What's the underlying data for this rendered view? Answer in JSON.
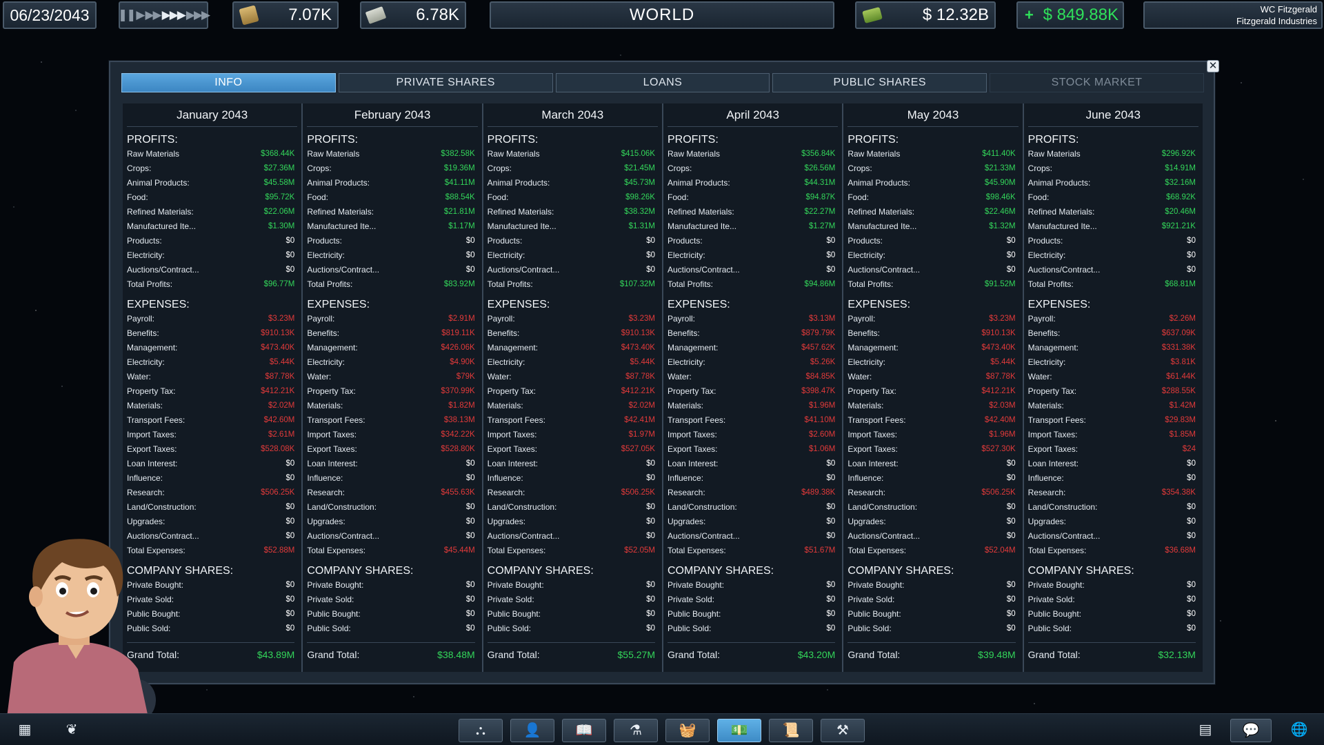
{
  "topbar": {
    "date": "06/23/2043",
    "speed_controls": [
      "pause-icon",
      "play-icon",
      "fast-icon",
      "faster-icon",
      "fastest-icon"
    ],
    "resource_scroll_value": "7.07K",
    "resource_bills_value": "6.78K",
    "view_title": "WORLD",
    "cash": "$ 12.32B",
    "income_sign": "+",
    "income": "$ 849.88K",
    "player_name": "WC Fitzgerald",
    "company_name": "Fitzgerald Industries"
  },
  "tabs": [
    {
      "label": "INFO",
      "state": "active"
    },
    {
      "label": "PRIVATE SHARES",
      "state": "normal"
    },
    {
      "label": "LOANS",
      "state": "normal"
    },
    {
      "label": "PUBLIC SHARES",
      "state": "normal"
    },
    {
      "label": "STOCK MARKET",
      "state": "disabled"
    }
  ],
  "section_titles": {
    "profits": "PROFITS:",
    "expenses": "EXPENSES:",
    "shares": "COMPANY SHARES:",
    "grand_total": "Grand Total:"
  },
  "profit_labels": [
    "Raw Materials",
    "Crops:",
    "Animal Products:",
    "Food:",
    "Refined Materials:",
    "Manufactured Ite...",
    "Products:",
    "Electricity:",
    "Auctions/Contract...",
    "Total Profits:"
  ],
  "expense_labels": [
    "Payroll:",
    "Benefits:",
    "Management:",
    "Electricity:",
    "Water:",
    "Property Tax:",
    "Materials:",
    "Transport Fees:",
    "Import Taxes:",
    "Export Taxes:",
    "Loan Interest:",
    "Influence:",
    "Research:",
    "Land/Construction:",
    "Upgrades:",
    "Auctions/Contract...",
    "Total Expenses:"
  ],
  "share_labels": [
    "Private Bought:",
    "Private Sold:",
    "Public Bought:",
    "Public Sold:"
  ],
  "months": [
    {
      "title": "January 2043",
      "profits": [
        "$368.44K",
        "$27.36M",
        "$45.58M",
        "$95.72K",
        "$22.06M",
        "$1.30M",
        "$0",
        "$0",
        "$0",
        "$96.77M"
      ],
      "expenses": [
        "$3.23M",
        "$910.13K",
        "$473.40K",
        "$5.44K",
        "$87.78K",
        "$412.21K",
        "$2.02M",
        "$42.60M",
        "$2.61M",
        "$528.08K",
        "$0",
        "$0",
        "$506.25K",
        "$0",
        "$0",
        "$0",
        "$52.88M"
      ],
      "shares": [
        "$0",
        "$0",
        "$0",
        "$0"
      ],
      "grand_total": "$43.89M"
    },
    {
      "title": "February 2043",
      "profits": [
        "$382.58K",
        "$19.36M",
        "$41.11M",
        "$88.54K",
        "$21.81M",
        "$1.17M",
        "$0",
        "$0",
        "$0",
        "$83.92M"
      ],
      "expenses": [
        "$2.91M",
        "$819.11K",
        "$426.06K",
        "$4.90K",
        "$79K",
        "$370.99K",
        "$1.82M",
        "$38.13M",
        "$342.22K",
        "$528.80K",
        "$0",
        "$0",
        "$455.63K",
        "$0",
        "$0",
        "$0",
        "$45.44M"
      ],
      "shares": [
        "$0",
        "$0",
        "$0",
        "$0"
      ],
      "grand_total": "$38.48M"
    },
    {
      "title": "March 2043",
      "profits": [
        "$415.06K",
        "$21.45M",
        "$45.73M",
        "$98.26K",
        "$38.32M",
        "$1.31M",
        "$0",
        "$0",
        "$0",
        "$107.32M"
      ],
      "expenses": [
        "$3.23M",
        "$910.13K",
        "$473.40K",
        "$5.44K",
        "$87.78K",
        "$412.21K",
        "$2.02M",
        "$42.41M",
        "$1.97M",
        "$527.05K",
        "$0",
        "$0",
        "$506.25K",
        "$0",
        "$0",
        "$0",
        "$52.05M"
      ],
      "shares": [
        "$0",
        "$0",
        "$0",
        "$0"
      ],
      "grand_total": "$55.27M"
    },
    {
      "title": "April 2043",
      "profits": [
        "$356.84K",
        "$26.56M",
        "$44.31M",
        "$94.87K",
        "$22.27M",
        "$1.27M",
        "$0",
        "$0",
        "$0",
        "$94.86M"
      ],
      "expenses": [
        "$3.13M",
        "$879.79K",
        "$457.62K",
        "$5.26K",
        "$84.85K",
        "$398.47K",
        "$1.96M",
        "$41.10M",
        "$2.60M",
        "$1.06M",
        "$0",
        "$0",
        "$489.38K",
        "$0",
        "$0",
        "$0",
        "$51.67M"
      ],
      "shares": [
        "$0",
        "$0",
        "$0",
        "$0"
      ],
      "grand_total": "$43.20M"
    },
    {
      "title": "May 2043",
      "profits": [
        "$411.40K",
        "$21.33M",
        "$45.90M",
        "$98.46K",
        "$22.46M",
        "$1.32M",
        "$0",
        "$0",
        "$0",
        "$91.52M"
      ],
      "expenses": [
        "$3.23M",
        "$910.13K",
        "$473.40K",
        "$5.44K",
        "$87.78K",
        "$412.21K",
        "$2.03M",
        "$42.40M",
        "$1.96M",
        "$527.30K",
        "$0",
        "$0",
        "$506.25K",
        "$0",
        "$0",
        "$0",
        "$52.04M"
      ],
      "shares": [
        "$0",
        "$0",
        "$0",
        "$0"
      ],
      "grand_total": "$39.48M"
    },
    {
      "title": "June 2043",
      "profits": [
        "$296.92K",
        "$14.91M",
        "$32.16M",
        "$68.92K",
        "$20.46M",
        "$921.21K",
        "$0",
        "$0",
        "$0",
        "$68.81M"
      ],
      "expenses": [
        "$2.26M",
        "$637.09K",
        "$331.38K",
        "$3.81K",
        "$61.44K",
        "$288.55K",
        "$1.42M",
        "$29.83M",
        "$1.85M",
        "$24",
        "$0",
        "$0",
        "$354.38K",
        "$0",
        "$0",
        "$0",
        "$36.68M"
      ],
      "shares": [
        "$0",
        "$0",
        "$0",
        "$0"
      ],
      "grand_total": "$32.13M"
    }
  ],
  "bottombar": {
    "left_icons": [
      "grid-icon",
      "leaf-icon"
    ],
    "center_icons": [
      "org-chart-icon",
      "add-person-icon",
      "book-icon",
      "flask-icon",
      "basket-icon",
      "finance-icon",
      "contract-icon",
      "hammer-icon"
    ],
    "active_center": 5,
    "right_icons": [
      "calculator-icon",
      "chat-icon",
      "globe-icon"
    ]
  },
  "colors": {
    "positive": "#33d65a",
    "negative": "#e23a3a",
    "tab_active": "#4a9ad4",
    "panel": "#1e2935"
  }
}
